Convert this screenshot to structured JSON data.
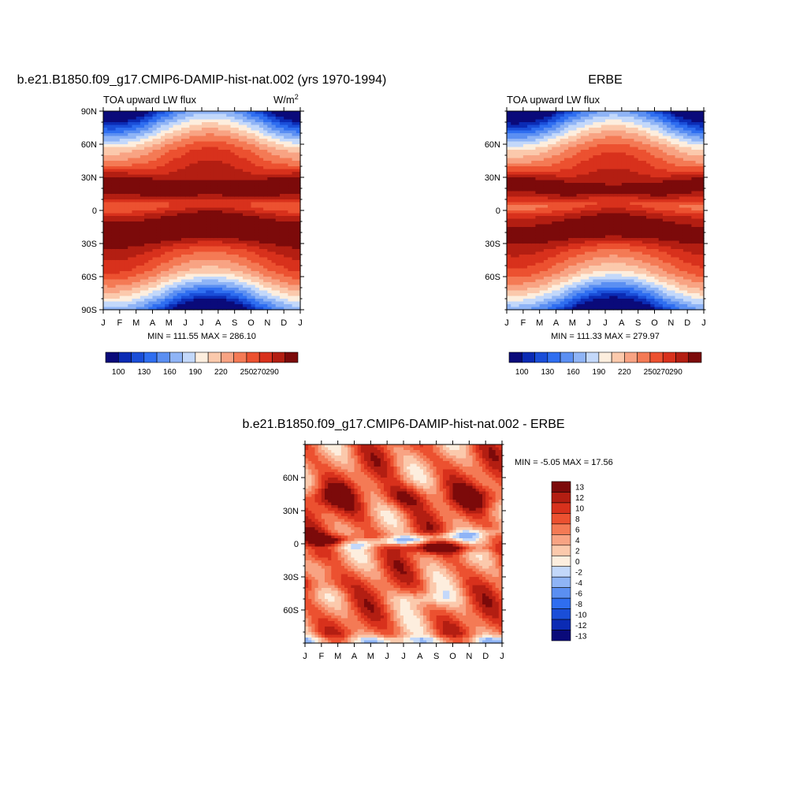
{
  "colors": {
    "abs_palette": [
      "#0a0a7a",
      "#0b2bb4",
      "#1a4ed8",
      "#2f6ef0",
      "#5b8ff2",
      "#8fb4f6",
      "#c3d8fa",
      "#fdeede",
      "#fbc9ac",
      "#f8a383",
      "#f47a55",
      "#ec5130",
      "#d8311c",
      "#b31e12",
      "#7c0a0a"
    ],
    "diff_palette": [
      "#0a0a7a",
      "#0b2bb4",
      "#1a4ed8",
      "#2f6ef0",
      "#5b8ff2",
      "#8fb4f6",
      "#c3d8fa",
      "#fdeede",
      "#fbc9ac",
      "#f8a383",
      "#f47a55",
      "#ec5130",
      "#d8311c",
      "#b31e12",
      "#7c0a0a"
    ]
  },
  "chart_data": [
    {
      "type": "heatmap",
      "title": "b.e21.B1850.f09_g17.CMIP6-DAMIP-hist-nat.002 (yrs 1970-1994)",
      "subtitle": "TOA upward LW flux",
      "units_label": "W/m",
      "units_sup": "2",
      "x_ticks": [
        "J",
        "F",
        "M",
        "A",
        "M",
        "J",
        "J",
        "A",
        "S",
        "O",
        "N",
        "D",
        "J"
      ],
      "y_ticks": [
        "90N",
        "60N",
        "30N",
        "0",
        "30S",
        "60S",
        "90S"
      ],
      "stats": "MIN = 111.55 MAX = 286.10",
      "min": 111.55,
      "max": 286.1,
      "colorbar_labels": [
        "100",
        "130",
        "160",
        "190",
        "220",
        "250",
        "270",
        "290"
      ],
      "colorbar_levels": [
        100,
        110,
        120,
        130,
        140,
        150,
        160,
        170,
        180,
        190,
        200,
        210,
        220,
        230,
        240,
        250,
        260,
        270,
        280,
        290
      ]
    },
    {
      "type": "heatmap",
      "title": "ERBE",
      "subtitle": "TOA upward LW flux",
      "x_ticks": [
        "J",
        "F",
        "M",
        "A",
        "M",
        "J",
        "J",
        "A",
        "S",
        "O",
        "N",
        "D",
        "J"
      ],
      "y_ticks": [
        "60N",
        "30N",
        "0",
        "30S",
        "60S"
      ],
      "stats": "MIN = 111.33 MAX = 279.97",
      "min": 111.33,
      "max": 279.97,
      "colorbar_labels": [
        "100",
        "130",
        "160",
        "190",
        "220",
        "250",
        "270",
        "290"
      ]
    },
    {
      "type": "heatmap",
      "title": "b.e21.B1850.f09_g17.CMIP6-DAMIP-hist-nat.002 - ERBE",
      "x_ticks": [
        "J",
        "F",
        "M",
        "A",
        "M",
        "J",
        "J",
        "A",
        "S",
        "O",
        "N",
        "D",
        "J"
      ],
      "y_ticks": [
        "60N",
        "30N",
        "0",
        "30S",
        "60S"
      ],
      "stats": "MIN =  -5.05 MAX =  17.56",
      "min": -5.05,
      "max": 17.56,
      "colorbar_labels": [
        "13",
        "12",
        "10",
        "8",
        "6",
        "4",
        "2",
        "0",
        "-2",
        "-4",
        "-6",
        "-8",
        "-10",
        "-12",
        "-13"
      ]
    }
  ]
}
